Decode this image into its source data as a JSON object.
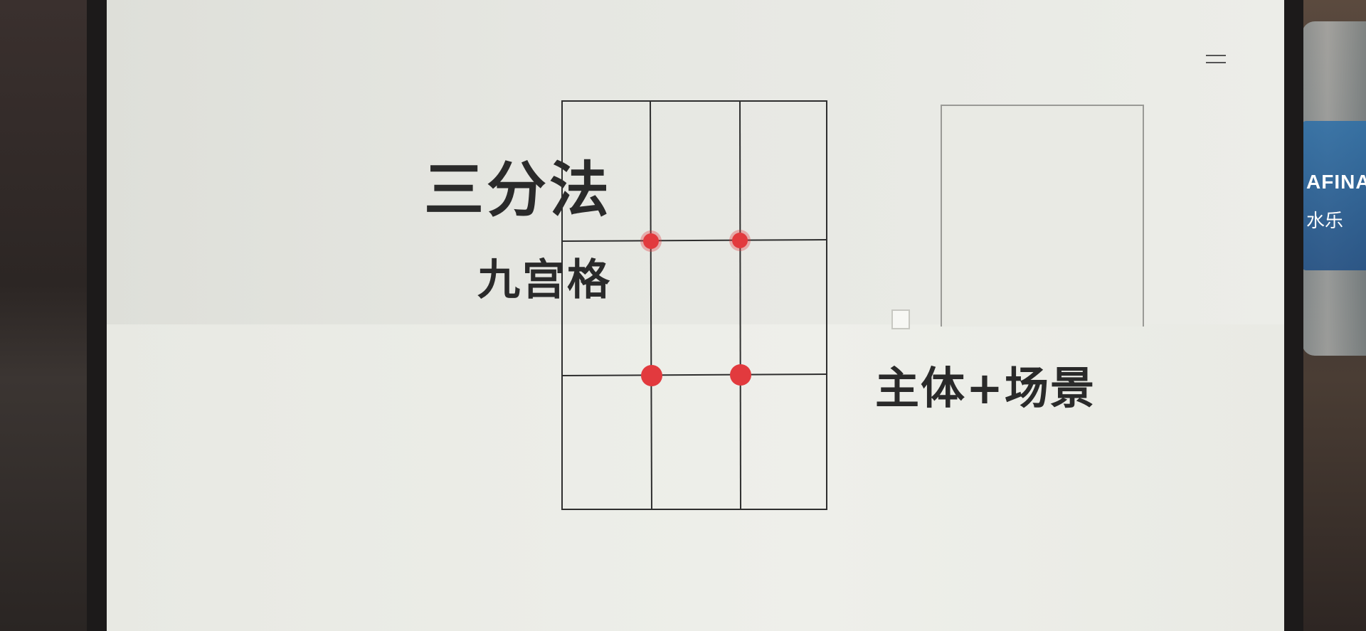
{
  "slide": {
    "title": "三分法",
    "subtitle": "九宫格",
    "caption": "主体+场景"
  },
  "environment": {
    "bottle_text": "AFINA",
    "bottle_subtext": "水乐"
  },
  "colors": {
    "grid_line": "#2e2e2e",
    "intersection_dot": "#e23a3e",
    "text": "#2a2a2a"
  },
  "icons": {
    "menu": "hamburger-menu-icon"
  }
}
